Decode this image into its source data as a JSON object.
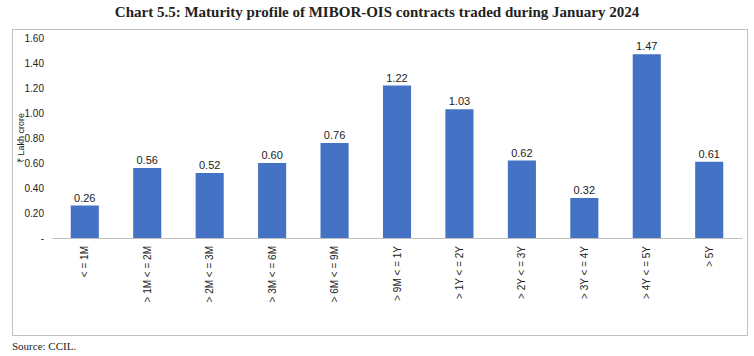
{
  "chart_data": {
    "type": "bar",
    "title": "Chart 5.5: Maturity profile of MIBOR-OIS contracts traded during January 2024",
    "y_label": "₹ Lakh crore",
    "source": "Source: CCIL.",
    "categories": [
      "< = 1M",
      "> 1M < = 2M",
      "> 2M < = 3M",
      "> 3M < = 6M",
      "> 6M < = 9M",
      "> 9M < = 1Y",
      "> 1Y < = 2Y",
      "> 2Y < = 3Y",
      "> 3Y < = 4Y",
      "> 4Y < = 5Y",
      "> 5Y"
    ],
    "values": [
      0.26,
      0.56,
      0.52,
      0.6,
      0.76,
      1.22,
      1.03,
      0.62,
      0.32,
      1.47,
      0.61
    ],
    "value_labels": [
      "0.26",
      "0.56",
      "0.52",
      "0.60",
      "0.76",
      "1.22",
      "1.03",
      "0.62",
      "0.32",
      "1.47",
      "0.61"
    ],
    "color": "#4472c4",
    "ylim": [
      0,
      1.6
    ],
    "yticks": [
      {
        "value": 0,
        "label": "-"
      },
      {
        "value": 0.2,
        "label": "0.20"
      },
      {
        "value": 0.4,
        "label": "0.40"
      },
      {
        "value": 0.6,
        "label": "0.60"
      },
      {
        "value": 0.8,
        "label": "0.80"
      },
      {
        "value": 1.0,
        "label": "1.00"
      },
      {
        "value": 1.2,
        "label": "1.20"
      },
      {
        "value": 1.4,
        "label": "1.40"
      },
      {
        "value": 1.6,
        "label": "1.60"
      }
    ],
    "grid": false,
    "data_labels": true
  }
}
